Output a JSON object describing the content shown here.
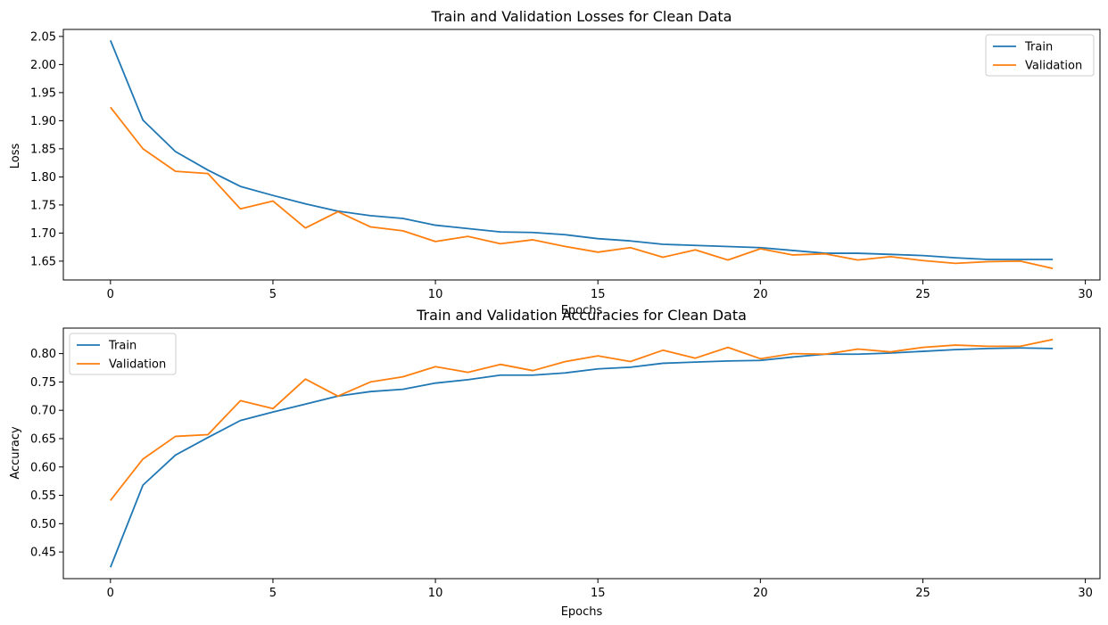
{
  "chart_data": [
    {
      "type": "line",
      "title": "Train and Validation Losses for Clean Data",
      "xlabel": "Epochs",
      "ylabel": "Loss",
      "xlim": [
        -1.45,
        30.45
      ],
      "ylim": [
        1.6165,
        2.0625
      ],
      "xticks": [
        0,
        5,
        10,
        15,
        20,
        25,
        30
      ],
      "yticks": [
        1.65,
        1.7,
        1.75,
        1.8,
        1.85,
        1.9,
        1.95,
        2.0,
        2.05
      ],
      "legend_position": "top-right",
      "x": [
        0,
        1,
        2,
        3,
        4,
        5,
        6,
        7,
        8,
        9,
        10,
        11,
        12,
        13,
        14,
        15,
        16,
        17,
        18,
        19,
        20,
        21,
        22,
        23,
        24,
        25,
        26,
        27,
        28,
        29
      ],
      "series": [
        {
          "name": "Train",
          "color": "#1f77b4",
          "values": [
            2.043,
            1.901,
            1.845,
            1.812,
            1.783,
            1.767,
            1.752,
            1.739,
            1.731,
            1.726,
            1.714,
            1.708,
            1.702,
            1.701,
            1.697,
            1.69,
            1.686,
            1.68,
            1.678,
            1.676,
            1.674,
            1.669,
            1.664,
            1.664,
            1.662,
            1.66,
            1.656,
            1.653,
            1.653,
            1.653
          ]
        },
        {
          "name": "Validation",
          "color": "#ff7f0e",
          "values": [
            1.924,
            1.85,
            1.81,
            1.806,
            1.743,
            1.757,
            1.709,
            1.738,
            1.711,
            1.704,
            1.685,
            1.694,
            1.681,
            1.688,
            1.676,
            1.666,
            1.674,
            1.657,
            1.67,
            1.652,
            1.672,
            1.661,
            1.663,
            1.652,
            1.658,
            1.651,
            1.646,
            1.649,
            1.65,
            1.637
          ]
        }
      ]
    },
    {
      "type": "line",
      "title": "Train and Validation Accuracies for Clean Data",
      "xlabel": "Epochs",
      "ylabel": "Accuracy",
      "xlim": [
        -1.45,
        30.45
      ],
      "ylim": [
        0.403,
        0.845
      ],
      "xticks": [
        0,
        5,
        10,
        15,
        20,
        25,
        30
      ],
      "yticks": [
        0.45,
        0.5,
        0.55,
        0.6,
        0.65,
        0.7,
        0.75,
        0.8
      ],
      "legend_position": "top-left",
      "x": [
        0,
        1,
        2,
        3,
        4,
        5,
        6,
        7,
        8,
        9,
        10,
        11,
        12,
        13,
        14,
        15,
        16,
        17,
        18,
        19,
        20,
        21,
        22,
        23,
        24,
        25,
        26,
        27,
        28,
        29
      ],
      "series": [
        {
          "name": "Train",
          "color": "#1f77b4",
          "values": [
            0.423,
            0.568,
            0.621,
            0.652,
            0.682,
            0.697,
            0.711,
            0.725,
            0.733,
            0.737,
            0.748,
            0.754,
            0.762,
            0.762,
            0.766,
            0.773,
            0.776,
            0.783,
            0.785,
            0.787,
            0.788,
            0.794,
            0.799,
            0.799,
            0.801,
            0.804,
            0.807,
            0.809,
            0.81,
            0.809
          ]
        },
        {
          "name": "Validation",
          "color": "#ff7f0e",
          "values": [
            0.541,
            0.614,
            0.654,
            0.657,
            0.717,
            0.703,
            0.755,
            0.725,
            0.75,
            0.759,
            0.777,
            0.767,
            0.781,
            0.77,
            0.786,
            0.796,
            0.786,
            0.806,
            0.792,
            0.811,
            0.791,
            0.8,
            0.799,
            0.808,
            0.803,
            0.811,
            0.815,
            0.813,
            0.813,
            0.825
          ]
        }
      ]
    }
  ]
}
